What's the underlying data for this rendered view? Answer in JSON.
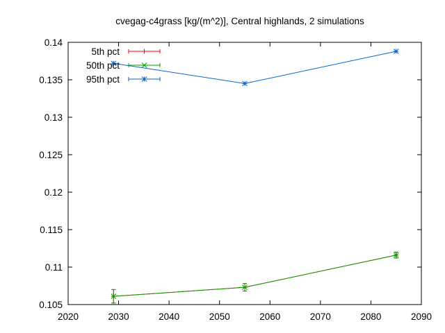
{
  "chart_data": {
    "type": "line",
    "title": "cvegag-c4grass [kg/(m^2)], Central highlands, 2 simulations",
    "xlabel": "",
    "ylabel": "",
    "xlim": [
      2020,
      2090
    ],
    "ylim": [
      0.105,
      0.14
    ],
    "xticks": [
      2020,
      2030,
      2040,
      2050,
      2060,
      2070,
      2080,
      2090
    ],
    "yticks": [
      0.105,
      0.11,
      0.115,
      0.12,
      0.125,
      0.13,
      0.135,
      0.14
    ],
    "ytick_labels": [
      "0.105",
      "0.11",
      "0.115",
      "0.12",
      "0.125",
      "0.13",
      "0.135",
      "0.14"
    ],
    "grid": false,
    "legend_position": "top-left",
    "x": [
      2029,
      2055,
      2085
    ],
    "series": [
      {
        "name": "5th pct",
        "color": "#ff0000",
        "marker": "plus",
        "values": [
          0.1061,
          0.1073,
          0.1116
        ],
        "err_low": [
          0.1052,
          0.1068,
          0.1112
        ],
        "err_high": [
          0.107,
          0.1078,
          0.112
        ]
      },
      {
        "name": "50th pct",
        "color": "#00a000",
        "marker": "cross",
        "values": [
          0.1061,
          0.1073,
          0.1116
        ],
        "err_low": [
          0.1052,
          0.1068,
          0.1112
        ],
        "err_high": [
          0.107,
          0.1078,
          0.112
        ]
      },
      {
        "name": "95th pct",
        "color": "#0066cc",
        "marker": "star",
        "values": [
          0.1372,
          0.1345,
          0.1388
        ],
        "err_low": [
          0.1372,
          0.1345,
          0.1388
        ],
        "err_high": [
          0.1372,
          0.1345,
          0.1388
        ]
      }
    ]
  }
}
